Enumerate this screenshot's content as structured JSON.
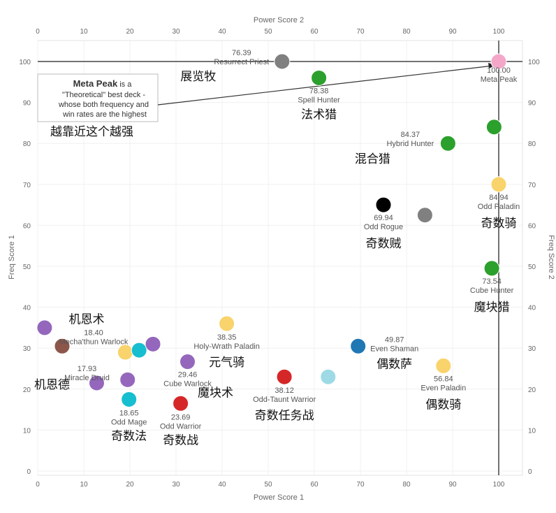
{
  "chart_data": {
    "type": "scatter",
    "x_axis_bottom": "Power Score 1",
    "x_axis_top": "Power Score 2",
    "y_axis_left": "Freq Score 1",
    "y_axis_right": "Freq Score 2",
    "xlim": [
      0,
      105
    ],
    "ylim": [
      0,
      105
    ],
    "x_ticks": [
      0,
      10,
      20,
      30,
      40,
      50,
      60,
      70,
      80,
      90,
      100
    ],
    "y_ticks": [
      0,
      10,
      20,
      30,
      40,
      50,
      60,
      70,
      80,
      90,
      100
    ],
    "reference_lines": {
      "x": 100,
      "y": 100
    },
    "callout": {
      "bold": "Meta Peak",
      "lines": [
        " is a",
        "\"Theoretical\" best deck -",
        "whose both frequency and",
        "win rates are the highest"
      ],
      "caption": "越靠近这个越强"
    },
    "points": [
      {
        "x": 100,
        "y": 100,
        "color": "#f4a7c8",
        "value": "100.00",
        "name": "Meta Peak",
        "cn": ""
      },
      {
        "x": 53,
        "y": 100,
        "color": "#808080",
        "value": "76.39",
        "name": "Resurrect Priest",
        "cn": "展览牧"
      },
      {
        "x": 61,
        "y": 96,
        "color": "#2ca02c",
        "value": "78.38",
        "name": "Spell Hunter",
        "cn": "法术猎"
      },
      {
        "x": 89,
        "y": 80,
        "color": "#2ca02c",
        "value": "84.37",
        "name": "Hybrid Hunter",
        "cn": "混合猎"
      },
      {
        "x": 99,
        "y": 84,
        "color": "#2ca02c",
        "value": "",
        "name": "",
        "cn": ""
      },
      {
        "x": 100,
        "y": 70,
        "color": "#f9d36b",
        "value": "84.94",
        "name": "Odd Paladin",
        "cn": "奇数骑"
      },
      {
        "x": 75,
        "y": 65,
        "color": "#000000",
        "value": "69.94",
        "name": "Odd Rogue",
        "cn": "奇数贼"
      },
      {
        "x": 84,
        "y": 62.5,
        "color": "#808080",
        "value": "",
        "name": "",
        "cn": ""
      },
      {
        "x": 98.5,
        "y": 49.5,
        "color": "#2ca02c",
        "value": "73.54",
        "name": "Cube Hunter",
        "cn": "魔块猎"
      },
      {
        "x": 1.5,
        "y": 35,
        "color": "#9467bd",
        "value": "",
        "name": "",
        "cn": ""
      },
      {
        "x": 5.3,
        "y": 30.5,
        "color": "#8c564b",
        "value": "18.40",
        "name": "Mecha'thun Warlock",
        "cn": "机恩术"
      },
      {
        "x": 19,
        "y": 29,
        "color": "#f9d36b",
        "value": "",
        "name": "",
        "cn": ""
      },
      {
        "x": 22,
        "y": 29.5,
        "color": "#17becf",
        "value": "",
        "name": "",
        "cn": ""
      },
      {
        "x": 25,
        "y": 31,
        "color": "#9467bd",
        "value": "",
        "name": "",
        "cn": ""
      },
      {
        "x": 41,
        "y": 36,
        "color": "#f9d36b",
        "value": "38.35",
        "name": "Holy-Wrath Paladin",
        "cn": "元气骑"
      },
      {
        "x": 32.5,
        "y": 26.7,
        "color": "#9467bd",
        "value": "29.46",
        "name": "Cube Warlock",
        "cn": "魔块术"
      },
      {
        "x": 12.8,
        "y": 21.5,
        "color": "#9467bd",
        "value": "17.93",
        "name": "Miracle Druid",
        "cn": "机恩德"
      },
      {
        "x": 19.5,
        "y": 22.3,
        "color": "#9467bd",
        "value": "",
        "name": "",
        "cn": ""
      },
      {
        "x": 19.8,
        "y": 17.5,
        "color": "#17becf",
        "value": "18.65",
        "name": "Odd Mage",
        "cn": "奇数法"
      },
      {
        "x": 31,
        "y": 16.5,
        "color": "#d62728",
        "value": "23.69",
        "name": "Odd Warrior",
        "cn": "奇数战"
      },
      {
        "x": 53.5,
        "y": 23,
        "color": "#d62728",
        "value": "38.12",
        "name": "Odd-Taunt Warrior",
        "cn": "奇数任务战"
      },
      {
        "x": 63,
        "y": 23,
        "color": "#9edae5",
        "value": "",
        "name": "",
        "cn": ""
      },
      {
        "x": 69.5,
        "y": 30.5,
        "color": "#1f77b4",
        "value": "49.87",
        "name": "Even Shaman",
        "cn": "偶数萨"
      },
      {
        "x": 88,
        "y": 25.7,
        "color": "#f9d36b",
        "value": "56.84",
        "name": "Even Paladin",
        "cn": "偶数骑"
      }
    ]
  }
}
